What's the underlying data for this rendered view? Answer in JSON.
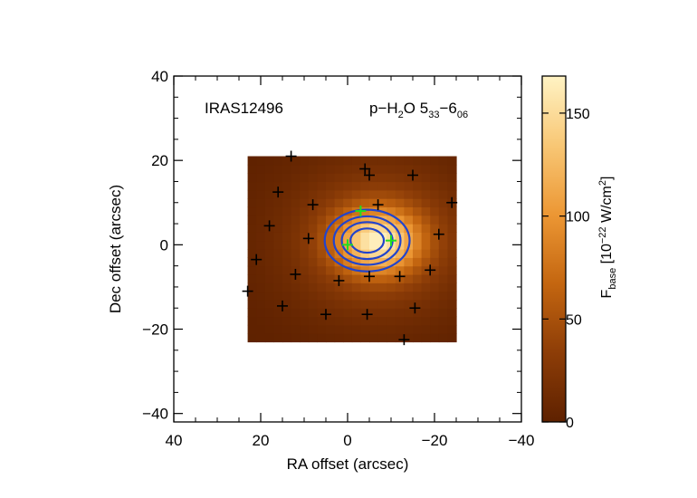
{
  "chart_data": {
    "type": "heatmap",
    "title_left": "IRAS12496",
    "title_right": {
      "prefix": "p−H",
      "sub_2": "2",
      "mid": "O 5",
      "sub_33": "33",
      "dash": "−6",
      "sub_06": "06"
    },
    "xlabel": "RA offset (arcsec)",
    "ylabel": "Dec offset (arcsec)",
    "xlim": [
      40,
      -40
    ],
    "ylim": [
      -42,
      40
    ],
    "xticks": [
      40,
      20,
      0,
      -20,
      -40
    ],
    "yticks": [
      40,
      20,
      0,
      -20,
      -40
    ],
    "xtick_labels": [
      "40",
      "20",
      "0",
      "−20",
      "−40"
    ],
    "ytick_labels": [
      "40",
      "20",
      "0",
      "−20",
      "−40"
    ],
    "image_extent": {
      "x": [
        23,
        -24
      ],
      "y": [
        -23,
        21
      ]
    },
    "peak": {
      "x": -7,
      "y": 1,
      "value": 168
    },
    "contour_levels": [
      70,
      95,
      120,
      145
    ],
    "colorbar": {
      "range": [
        0,
        168
      ],
      "ticks": [
        0,
        50,
        100,
        150
      ],
      "tick_labels": [
        "0",
        "50",
        "100",
        "150"
      ],
      "label": {
        "F": "F",
        "sub_base": "base",
        "open": " [10",
        "sup_exp": "−22",
        "unit": " W/cm",
        "sup_2": "2",
        "close": "]"
      },
      "colors": [
        "#5e2100",
        "#8d3d07",
        "#c46610",
        "#ec9734",
        "#f8c775",
        "#fff3c4"
      ]
    },
    "markers_black": [
      [
        13,
        21
      ],
      [
        -4,
        18
      ],
      [
        16,
        12.5
      ],
      [
        -5,
        16.5
      ],
      [
        -15,
        16.5
      ],
      [
        -24,
        10
      ],
      [
        8,
        9.5
      ],
      [
        -7,
        9.5
      ],
      [
        -12,
        -7.5
      ],
      [
        -21,
        2.5
      ],
      [
        18,
        4.5
      ],
      [
        -19,
        -6
      ],
      [
        21,
        -3.5
      ],
      [
        9,
        1.5
      ],
      [
        12,
        -7
      ],
      [
        2,
        -8.5
      ],
      [
        -5,
        -7.5
      ],
      [
        23,
        -11
      ],
      [
        15,
        -14.5
      ],
      [
        5,
        -16.5
      ],
      [
        -4.5,
        -16.5
      ],
      [
        -15.5,
        -15
      ],
      [
        -13,
        -22.5
      ]
    ],
    "markers_green": [
      [
        -3,
        8
      ],
      [
        0,
        0
      ],
      [
        -10,
        1
      ]
    ],
    "marker_colors": {
      "black": "#000000",
      "green": "#22dd22",
      "contour": "#2244cc"
    }
  }
}
